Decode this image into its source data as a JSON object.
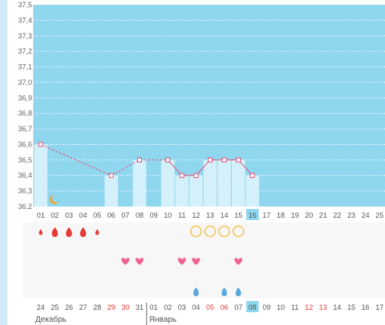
{
  "chart_data": {
    "type": "line",
    "ylim": [
      36.2,
      37.5
    ],
    "y_ticks": [
      "37,5",
      "37,4",
      "37,3",
      "37,2",
      "37,1",
      "37,0",
      "36,9",
      "36,8",
      "36,7",
      "36,6",
      "36,5",
      "36,4",
      "36,3",
      "36,2"
    ],
    "grid": true,
    "cycle_days": [
      "01",
      "02",
      "03",
      "04",
      "05",
      "06",
      "07",
      "08",
      "09",
      "10",
      "11",
      "12",
      "13",
      "14",
      "15",
      "16",
      "17",
      "18",
      "19",
      "20",
      "21",
      "22",
      "23",
      "24",
      "25"
    ],
    "current_cycle_day": "16",
    "temperatures": [
      36.6,
      null,
      null,
      null,
      null,
      36.4,
      null,
      36.5,
      null,
      36.5,
      36.4,
      36.4,
      36.5,
      36.5,
      36.5,
      36.4,
      null,
      null,
      null,
      null,
      null,
      null,
      null,
      null,
      null
    ],
    "dates": [
      "24",
      "25",
      "26",
      "27",
      "28",
      "29",
      "30",
      "31",
      "01",
      "02",
      "03",
      "04",
      "05",
      "06",
      "07",
      "08",
      "09",
      "10",
      "11",
      "12",
      "13",
      "14",
      "15",
      "16",
      "17"
    ],
    "weekend_dates": [
      "29",
      "30",
      "05",
      "06",
      "12",
      "13"
    ],
    "current_date": "08",
    "months": [
      {
        "label": "Декабрь",
        "start_index": 0
      },
      {
        "label": "Январь",
        "start_index": 8
      }
    ],
    "symbols": {
      "moon_days": [
        "02"
      ],
      "bleeding": [
        {
          "day": "01",
          "level": 1
        },
        {
          "day": "02",
          "level": 3
        },
        {
          "day": "03",
          "level": 3
        },
        {
          "day": "04",
          "level": 3
        },
        {
          "day": "05",
          "level": 1
        }
      ],
      "circles": [
        "12",
        "13",
        "14",
        "15"
      ],
      "hearts": [
        "07",
        "08",
        "11",
        "12",
        "15"
      ],
      "drops": [
        "12",
        "14",
        "15"
      ]
    },
    "colors": {
      "plot_bg": "#8fd6ef",
      "bar": "#d4f1fb",
      "line": "#e0557a",
      "bleeding": "#e53935",
      "heart": "#f06292",
      "circle": "#f5c451",
      "drop": "#5aa9dd",
      "moon": "#f5a623",
      "highlight": "#8fd6ef",
      "weekend": "#e53935"
    }
  }
}
